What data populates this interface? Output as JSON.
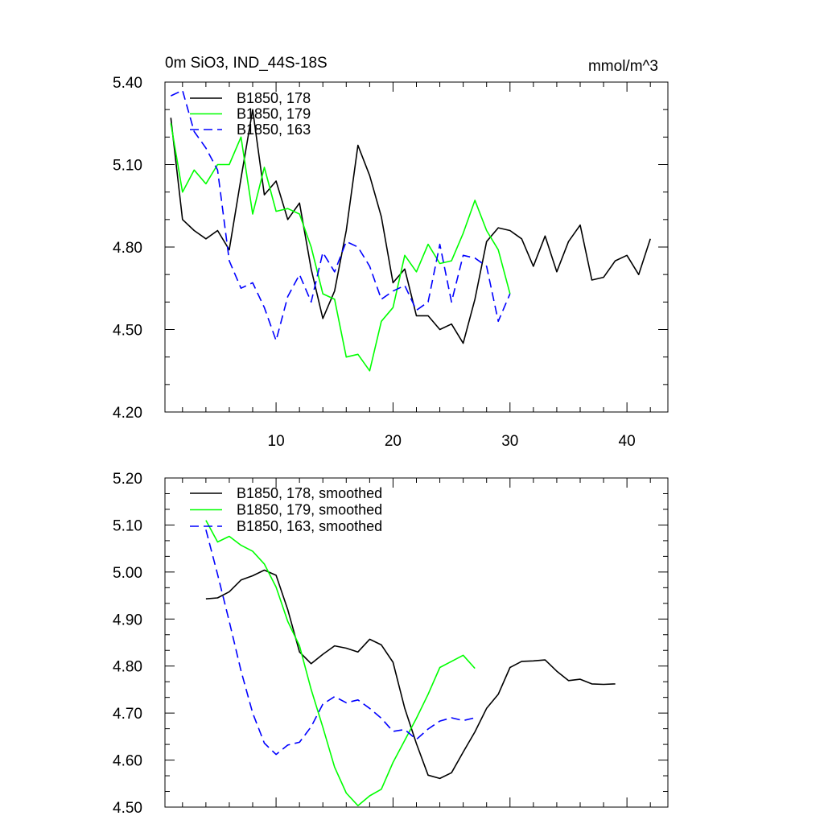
{
  "chart_data": [
    {
      "type": "line",
      "title": "0m SiO3, IND_44S-18S",
      "units": "mmol/m^3",
      "xlim": [
        0.5,
        43.5
      ],
      "ylim": [
        4.2,
        5.4
      ],
      "xticks": [
        10,
        20,
        30,
        40
      ],
      "yticks": [
        4.2,
        4.5,
        4.8,
        5.1,
        5.4
      ],
      "ytick_labels": [
        "4.20",
        "4.50",
        "4.80",
        "5.10",
        "5.40"
      ],
      "grid": false,
      "legend_position": "top-left",
      "series": [
        {
          "name": "B1850, 178",
          "color": "#000000",
          "dash": "solid",
          "x": [
            1,
            2,
            3,
            4,
            5,
            6,
            7,
            8,
            9,
            10,
            11,
            12,
            13,
            14,
            15,
            16,
            17,
            18,
            19,
            20,
            21,
            22,
            23,
            24,
            25,
            26,
            27,
            28,
            29,
            30,
            31,
            32,
            33,
            34,
            35,
            36,
            37,
            38,
            39,
            40,
            41,
            42
          ],
          "y": [
            5.27,
            4.9,
            4.86,
            4.83,
            4.86,
            4.79,
            5.05,
            5.3,
            4.99,
            5.04,
            4.9,
            4.96,
            4.72,
            4.54,
            4.64,
            4.86,
            5.17,
            5.06,
            4.91,
            4.67,
            4.72,
            4.55,
            4.55,
            4.5,
            4.52,
            4.45,
            4.61,
            4.82,
            4.87,
            4.86,
            4.83,
            4.73,
            4.84,
            4.71,
            4.82,
            4.88,
            4.68,
            4.69,
            4.75,
            4.77,
            4.7,
            4.83
          ]
        },
        {
          "name": "B1850, 179",
          "color": "#00ff00",
          "dash": "solid",
          "x": [
            1,
            2,
            3,
            4,
            5,
            6,
            7,
            8,
            9,
            10,
            11,
            12,
            13,
            14,
            15,
            16,
            17,
            18,
            19,
            20,
            21,
            22,
            23,
            24,
            25,
            26,
            27,
            28,
            29,
            30
          ],
          "y": [
            5.25,
            5.0,
            5.08,
            5.03,
            5.1,
            5.1,
            5.2,
            4.92,
            5.09,
            4.93,
            4.94,
            4.92,
            4.8,
            4.63,
            4.61,
            4.4,
            4.41,
            4.35,
            4.53,
            4.58,
            4.77,
            4.71,
            4.81,
            4.74,
            4.75,
            4.85,
            4.97,
            4.86,
            4.79,
            4.63
          ]
        },
        {
          "name": "B1850, 163",
          "color": "#0000ff",
          "dash": "dashed",
          "x": [
            1,
            2,
            3,
            4,
            5,
            6,
            7,
            8,
            9,
            10,
            11,
            12,
            13,
            14,
            15,
            16,
            17,
            18,
            19,
            20,
            21,
            22,
            23,
            24,
            25,
            26,
            27,
            28,
            29,
            30
          ],
          "y": [
            5.35,
            5.37,
            5.22,
            5.16,
            5.08,
            4.75,
            4.65,
            4.67,
            4.58,
            4.46,
            4.62,
            4.7,
            4.6,
            4.78,
            4.71,
            4.82,
            4.8,
            4.73,
            4.61,
            4.64,
            4.66,
            4.57,
            4.6,
            4.81,
            4.6,
            4.77,
            4.76,
            4.73,
            4.53,
            4.63
          ]
        }
      ]
    },
    {
      "type": "line",
      "title": "",
      "xlim": [
        0.5,
        43.5
      ],
      "ylim": [
        4.5,
        5.2
      ],
      "xticks": [
        10,
        20,
        30,
        40
      ],
      "yticks": [
        4.5,
        4.6,
        4.7,
        4.8,
        4.9,
        5.0,
        5.1,
        5.2
      ],
      "ytick_labels": [
        "4.50",
        "4.60",
        "4.70",
        "4.80",
        "4.90",
        "5.00",
        "5.10",
        "5.20"
      ],
      "grid": false,
      "legend_position": "top-left",
      "series": [
        {
          "name": "B1850, 178, smoothed",
          "color": "#000000",
          "dash": "solid",
          "x": [
            4,
            5,
            6,
            7,
            8,
            9,
            10,
            11,
            12,
            13,
            14,
            15,
            16,
            17,
            18,
            19,
            20,
            21,
            22,
            23,
            24,
            25,
            26,
            27,
            28,
            29,
            30,
            31,
            32,
            33,
            34,
            35,
            36,
            37,
            38,
            39
          ],
          "y": [
            4.943,
            4.945,
            4.958,
            4.983,
            4.992,
            5.004,
            4.993,
            4.92,
            4.83,
            4.805,
            4.825,
            4.843,
            4.838,
            4.83,
            4.857,
            4.845,
            4.808,
            4.71,
            4.635,
            4.568,
            4.561,
            4.573,
            4.617,
            4.66,
            4.71,
            4.74,
            4.797,
            4.81,
            4.811,
            4.813,
            4.789,
            4.769,
            4.772,
            4.762,
            4.761,
            4.762
          ]
        },
        {
          "name": "B1850, 179, smoothed",
          "color": "#00ff00",
          "dash": "solid",
          "x": [
            4,
            5,
            6,
            7,
            8,
            9,
            10,
            11,
            12,
            13,
            14,
            15,
            16,
            17,
            18,
            19,
            20,
            21,
            22,
            23,
            24,
            25,
            26,
            27
          ],
          "y": [
            5.11,
            5.064,
            5.076,
            5.057,
            5.044,
            5.017,
            4.968,
            4.895,
            4.843,
            4.75,
            4.67,
            4.585,
            4.53,
            4.503,
            4.524,
            4.538,
            4.595,
            4.642,
            4.689,
            4.74,
            4.797,
            4.81,
            4.823,
            4.795
          ]
        },
        {
          "name": "B1850, 163, smoothed",
          "color": "#0000ff",
          "dash": "dashed",
          "x": [
            4,
            5,
            6,
            7,
            8,
            9,
            10,
            11,
            12,
            13,
            14,
            15,
            16,
            17,
            18,
            19,
            20,
            21,
            22,
            23,
            24,
            25,
            26,
            27
          ],
          "y": [
            5.09,
            4.995,
            4.895,
            4.79,
            4.7,
            4.636,
            4.612,
            4.632,
            4.638,
            4.671,
            4.719,
            4.735,
            4.722,
            4.728,
            4.71,
            4.689,
            4.661,
            4.665,
            4.644,
            4.666,
            4.683,
            4.69,
            4.684,
            4.69
          ]
        }
      ]
    }
  ]
}
